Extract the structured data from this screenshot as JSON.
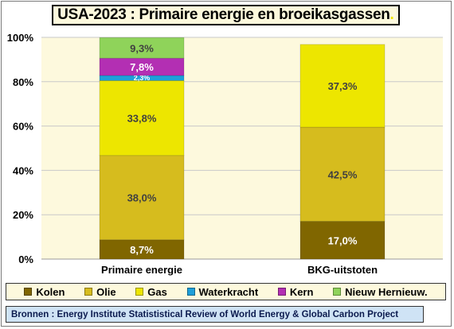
{
  "title": "USA-2023 : Primaire energie en broeikasgassen",
  "title_trailing_mark": ".",
  "chart_data": {
    "type": "bar",
    "stacked": true,
    "categories": [
      "Primaire energie",
      "BKG-uitstoten"
    ],
    "series": [
      {
        "name": "Kolen",
        "color": "#806600",
        "values": [
          8.7,
          17.0
        ],
        "labels": [
          "8,7%",
          "17,0%"
        ]
      },
      {
        "name": "Olie",
        "color": "#d6bc1e",
        "values": [
          38.0,
          42.5
        ],
        "labels": [
          "38,0%",
          "42,5%"
        ]
      },
      {
        "name": "Gas",
        "color": "#ede600",
        "values": [
          33.8,
          37.3
        ],
        "labels": [
          "33,8%",
          "37,3%"
        ]
      },
      {
        "name": "Waterkracht",
        "color": "#1e9fd9",
        "values": [
          2.3,
          0
        ],
        "labels": [
          "2,3%",
          ""
        ]
      },
      {
        "name": "Kern",
        "color": "#b32fb3",
        "values": [
          7.8,
          0
        ],
        "labels": [
          "7,8%",
          ""
        ]
      },
      {
        "name": "Nieuw Hernieuw.",
        "color": "#8fd35a",
        "values": [
          9.3,
          0
        ],
        "labels": [
          "9,3%",
          ""
        ]
      }
    ],
    "ylim": [
      0,
      100
    ],
    "yticks": [
      "0%",
      "20%",
      "40%",
      "60%",
      "80%",
      "100%"
    ],
    "grid": true,
    "legend": "bottom"
  },
  "source": "Bronnen : Energy Institute Statististical Review of World Energy & Global Carbon Project"
}
